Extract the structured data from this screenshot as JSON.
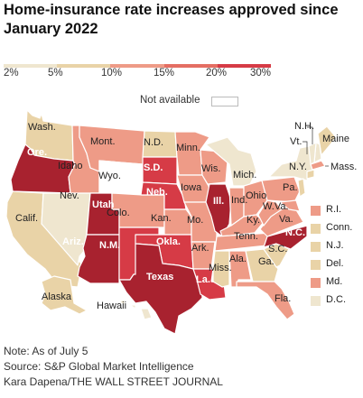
{
  "title": "Home-insurance rate increases approved since January 2022",
  "scale": {
    "labels": [
      "2%",
      "5%",
      "10%",
      "15%",
      "20%",
      "30%"
    ],
    "colors": [
      "#efe6cf",
      "#e9d3a7",
      "#ee9b87",
      "#e46e63",
      "#d63b46",
      "#a8222f"
    ]
  },
  "not_available": "Not available",
  "colors": {
    "na": "#ffffff",
    "border": "#ffffff"
  },
  "states": {
    "wa": {
      "label": "Wash.",
      "bin": 1
    },
    "or": {
      "label": "Ore.",
      "bin": 5
    },
    "ca": {
      "label": "Calif.",
      "bin": 1
    },
    "nv": {
      "label": "Nev.",
      "bin": 0
    },
    "id": {
      "label": "Idaho",
      "bin": 2
    },
    "mt": {
      "label": "Mont.",
      "bin": 2
    },
    "wy": {
      "label": "Wyo.",
      "bin": -1
    },
    "ut": {
      "label": "Utah",
      "bin": 5
    },
    "az": {
      "label": "Ariz.",
      "bin": 5
    },
    "co": {
      "label": "Colo.",
      "bin": 2
    },
    "nm": {
      "label": "N.M.",
      "bin": 4
    },
    "nd": {
      "label": "N.D.",
      "bin": 1
    },
    "sd": {
      "label": "S.D.",
      "bin": 4
    },
    "ne": {
      "label": "Neb.",
      "bin": 4
    },
    "ks": {
      "label": "Kan.",
      "bin": 2
    },
    "ok": {
      "label": "Okla.",
      "bin": 4
    },
    "tx": {
      "label": "Texas",
      "bin": 5
    },
    "mn": {
      "label": "Minn.",
      "bin": 2
    },
    "ia": {
      "label": "Iowa",
      "bin": 2
    },
    "mo": {
      "label": "Mo.",
      "bin": 2
    },
    "ar": {
      "label": "Ark.",
      "bin": 2
    },
    "la": {
      "label": "La.",
      "bin": 4
    },
    "wi": {
      "label": "Wis.",
      "bin": 2
    },
    "il": {
      "label": "Ill.",
      "bin": 5
    },
    "mi": {
      "label": "Mich.",
      "bin": 0
    },
    "in": {
      "label": "Ind.",
      "bin": 2
    },
    "oh": {
      "label": "Ohio",
      "bin": 2
    },
    "ky": {
      "label": "Ky.",
      "bin": 2
    },
    "tn": {
      "label": "Tenn.",
      "bin": 2
    },
    "ms": {
      "label": "Miss.",
      "bin": 1
    },
    "al": {
      "label": "Ala.",
      "bin": 2
    },
    "ga": {
      "label": "Ga.",
      "bin": 1
    },
    "fl": {
      "label": "Fla.",
      "bin": 2
    },
    "sc": {
      "label": "S.C.",
      "bin": 1
    },
    "nc": {
      "label": "N.C.",
      "bin": 5
    },
    "va": {
      "label": "Va.",
      "bin": 2
    },
    "wv": {
      "label": "W.Va.",
      "bin": 2
    },
    "pa": {
      "label": "Pa.",
      "bin": 2
    },
    "ny": {
      "label": "N.Y.",
      "bin": 0
    },
    "me": {
      "label": "Maine",
      "bin": 1
    },
    "nh": {
      "label": "N.H.",
      "bin": 0
    },
    "vt": {
      "label": "Vt.",
      "bin": 0
    },
    "ma": {
      "label": "Mass.",
      "bin": 2
    },
    "ak": {
      "label": "Alaska",
      "bin": 1
    },
    "hi": {
      "label": "Hawaii",
      "bin": 0
    }
  },
  "small_states": [
    {
      "label": "R.I.",
      "bin": 2
    },
    {
      "label": "Conn.",
      "bin": 1
    },
    {
      "label": "N.J.",
      "bin": 1
    },
    {
      "label": "Del.",
      "bin": 1
    },
    {
      "label": "Md.",
      "bin": 2
    },
    {
      "label": "D.C.",
      "bin": 0
    }
  ],
  "notes": [
    "Note: As of July 5",
    "Source: S&P Global Market Intelligence",
    "Kara Dapena/THE WALL STREET JOURNAL"
  ]
}
